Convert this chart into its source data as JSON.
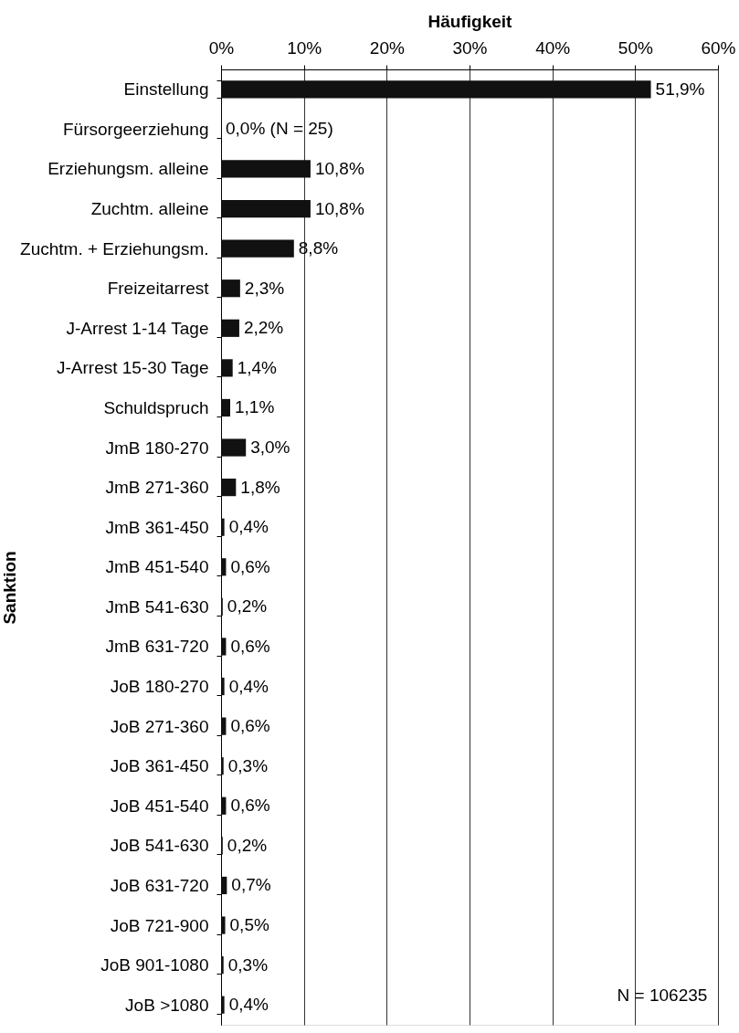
{
  "chart_data": {
    "type": "bar",
    "orientation": "horizontal",
    "xlabel": "Häufigkeit",
    "ylabel": "Sanktion",
    "categories": [
      "Einstellung",
      "Fürsorgeerziehung",
      "Erziehungsm. alleine",
      "Zuchtm. alleine",
      "Zuchtm. + Erziehungsm.",
      "Freizeitarrest",
      "J-Arrest 1-14 Tage",
      "J-Arrest 15-30 Tage",
      "Schuldspruch",
      "JmB 180-270",
      "JmB 271-360",
      "JmB 361-450",
      "JmB 451-540",
      "JmB 541-630",
      "JmB 631-720",
      "JoB 180-270",
      "JoB 271-360",
      "JoB 361-450",
      "JoB 451-540",
      "JoB 541-630",
      "JoB 631-720",
      "JoB 721-900",
      "JoB 901-1080",
      "JoB >1080"
    ],
    "values": [
      51.9,
      0.0,
      10.8,
      10.8,
      8.8,
      2.3,
      2.2,
      1.4,
      1.1,
      3.0,
      1.8,
      0.4,
      0.6,
      0.2,
      0.6,
      0.4,
      0.6,
      0.3,
      0.6,
      0.2,
      0.7,
      0.5,
      0.3,
      0.4
    ],
    "value_labels": [
      "51,9%",
      "0,0% (N = 25)",
      "10,8%",
      "10,8%",
      "8,8%",
      "2,3%",
      "2,2%",
      "1,4%",
      "1,1%",
      "3,0%",
      "1,8%",
      "0,4%",
      "0,6%",
      "0,2%",
      "0,6%",
      "0,4%",
      "0,6%",
      "0,3%",
      "0,6%",
      "0,2%",
      "0,7%",
      "0,5%",
      "0,3%",
      "0,4%"
    ],
    "color": "#111111",
    "xlim": [
      0,
      60
    ],
    "xticks": [
      {
        "value": 0,
        "label": "0%"
      },
      {
        "value": 10,
        "label": "10%"
      },
      {
        "value": 20,
        "label": "20%"
      },
      {
        "value": 30,
        "label": "30%"
      },
      {
        "value": 40,
        "label": "40%"
      },
      {
        "value": 50,
        "label": "50%"
      },
      {
        "value": 60,
        "label": "60%"
      }
    ],
    "grid": "x",
    "annotations": [
      "N = 106235"
    ]
  }
}
